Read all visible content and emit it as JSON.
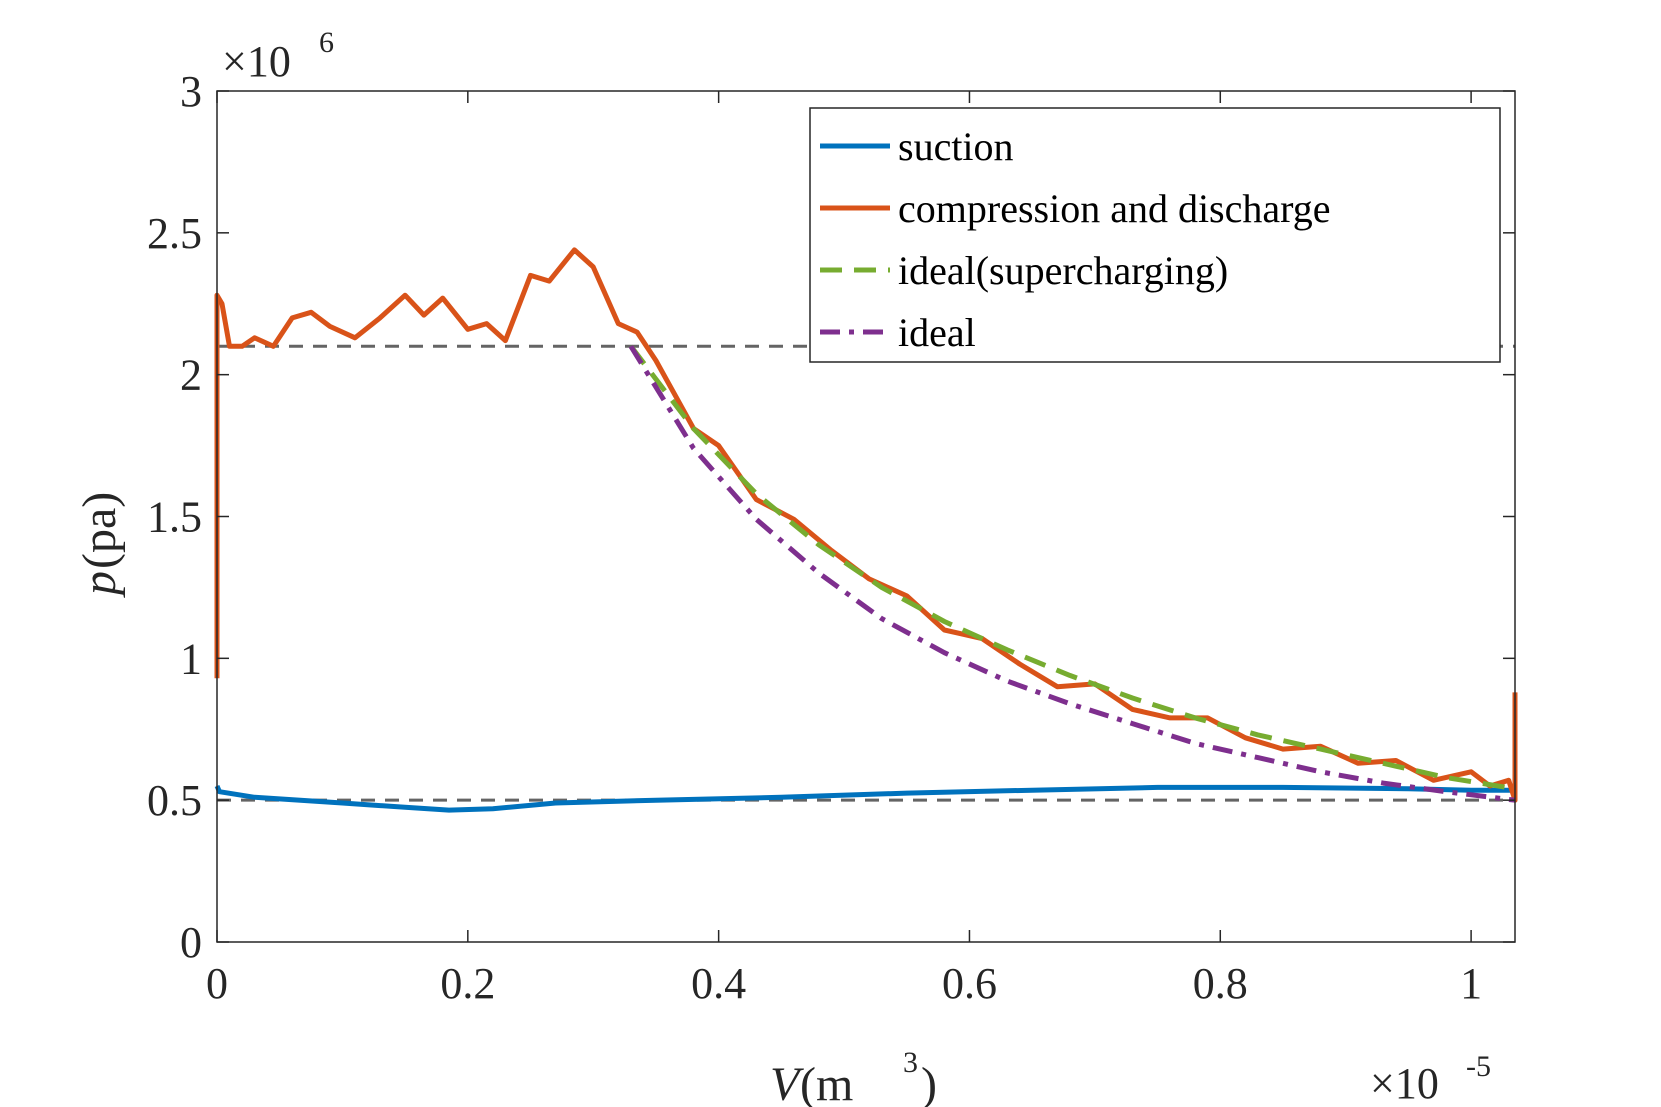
{
  "chart_data": {
    "type": "line",
    "xlabel": {
      "var": "V",
      "unit_base": " (m",
      "unit_sup": "3",
      "unit_close": ")"
    },
    "ylabel": {
      "var": "p",
      "unit": " (pa)"
    },
    "x_scale_label": {
      "base": "×10",
      "exp": "-5"
    },
    "y_scale_label": {
      "base": "×10",
      "exp": "6"
    },
    "xlim": [
      0,
      1.035
    ],
    "ylim": [
      0,
      3
    ],
    "x_ticks": [
      0,
      0.2,
      0.4,
      0.6,
      0.8,
      1
    ],
    "x_tick_labels": [
      "0",
      "0.2",
      "0.4",
      "0.6",
      "0.8",
      "1"
    ],
    "y_ticks": [
      0,
      0.5,
      1,
      1.5,
      2,
      2.5,
      3
    ],
    "y_tick_labels": [
      "0",
      "0.5",
      "1",
      "1.5",
      "2",
      "2.5",
      "3"
    ],
    "legend_position": "top-right",
    "reference_lines": [
      {
        "y": 2.1,
        "color": "#646464"
      },
      {
        "y": 0.5,
        "color": "#646464"
      }
    ],
    "series": [
      {
        "name": "suction",
        "color": "#0072BD",
        "style": "solid",
        "points": [
          [
            0.0,
            0.55
          ],
          [
            0.002,
            0.53
          ],
          [
            0.03,
            0.51
          ],
          [
            0.1,
            0.49
          ],
          [
            0.15,
            0.475
          ],
          [
            0.185,
            0.465
          ],
          [
            0.22,
            0.47
          ],
          [
            0.27,
            0.49
          ],
          [
            0.35,
            0.5
          ],
          [
            0.45,
            0.51
          ],
          [
            0.55,
            0.525
          ],
          [
            0.65,
            0.535
          ],
          [
            0.75,
            0.545
          ],
          [
            0.85,
            0.545
          ],
          [
            0.95,
            0.54
          ],
          [
            1.0,
            0.535
          ],
          [
            1.035,
            0.535
          ]
        ]
      },
      {
        "name": "compression and discharge",
        "color": "#D95319",
        "style": "solid",
        "points": [
          [
            0.0,
            0.93
          ],
          [
            0.0,
            2.28
          ],
          [
            0.004,
            2.25
          ],
          [
            0.01,
            2.1
          ],
          [
            0.02,
            2.1
          ],
          [
            0.03,
            2.13
          ],
          [
            0.045,
            2.1
          ],
          [
            0.06,
            2.2
          ],
          [
            0.075,
            2.22
          ],
          [
            0.09,
            2.17
          ],
          [
            0.11,
            2.13
          ],
          [
            0.13,
            2.2
          ],
          [
            0.15,
            2.28
          ],
          [
            0.165,
            2.21
          ],
          [
            0.18,
            2.27
          ],
          [
            0.2,
            2.16
          ],
          [
            0.215,
            2.18
          ],
          [
            0.23,
            2.12
          ],
          [
            0.25,
            2.35
          ],
          [
            0.265,
            2.33
          ],
          [
            0.285,
            2.44
          ],
          [
            0.3,
            2.38
          ],
          [
            0.32,
            2.18
          ],
          [
            0.335,
            2.15
          ],
          [
            0.35,
            2.05
          ],
          [
            0.38,
            1.81
          ],
          [
            0.4,
            1.75
          ],
          [
            0.43,
            1.56
          ],
          [
            0.46,
            1.49
          ],
          [
            0.49,
            1.38
          ],
          [
            0.52,
            1.28
          ],
          [
            0.55,
            1.22
          ],
          [
            0.58,
            1.1
          ],
          [
            0.61,
            1.07
          ],
          [
            0.64,
            0.98
          ],
          [
            0.67,
            0.9
          ],
          [
            0.7,
            0.91
          ],
          [
            0.73,
            0.82
          ],
          [
            0.76,
            0.79
          ],
          [
            0.79,
            0.79
          ],
          [
            0.82,
            0.72
          ],
          [
            0.85,
            0.68
          ],
          [
            0.88,
            0.69
          ],
          [
            0.91,
            0.63
          ],
          [
            0.94,
            0.64
          ],
          [
            0.97,
            0.57
          ],
          [
            1.0,
            0.6
          ],
          [
            1.015,
            0.55
          ],
          [
            1.03,
            0.57
          ],
          [
            1.035,
            0.5
          ],
          [
            1.035,
            0.88
          ]
        ]
      },
      {
        "name": "ideal(supercharging)",
        "color": "#77AC30",
        "style": "dashed",
        "points": [
          [
            0.33,
            2.1
          ],
          [
            0.38,
            1.81
          ],
          [
            0.43,
            1.58
          ],
          [
            0.48,
            1.4
          ],
          [
            0.53,
            1.25
          ],
          [
            0.58,
            1.13
          ],
          [
            0.63,
            1.03
          ],
          [
            0.68,
            0.94
          ],
          [
            0.73,
            0.86
          ],
          [
            0.78,
            0.79
          ],
          [
            0.83,
            0.73
          ],
          [
            0.88,
            0.68
          ],
          [
            0.93,
            0.63
          ],
          [
            0.98,
            0.58
          ],
          [
            1.035,
            0.54
          ]
        ]
      },
      {
        "name": "ideal",
        "color": "#7E2F8E",
        "style": "dashdot",
        "points": [
          [
            0.33,
            2.1
          ],
          [
            0.38,
            1.74
          ],
          [
            0.43,
            1.49
          ],
          [
            0.48,
            1.3
          ],
          [
            0.53,
            1.14
          ],
          [
            0.58,
            1.02
          ],
          [
            0.63,
            0.92
          ],
          [
            0.68,
            0.84
          ],
          [
            0.73,
            0.77
          ],
          [
            0.78,
            0.7
          ],
          [
            0.83,
            0.65
          ],
          [
            0.88,
            0.6
          ],
          [
            0.93,
            0.56
          ],
          [
            0.98,
            0.53
          ],
          [
            1.035,
            0.5
          ]
        ]
      }
    ]
  }
}
